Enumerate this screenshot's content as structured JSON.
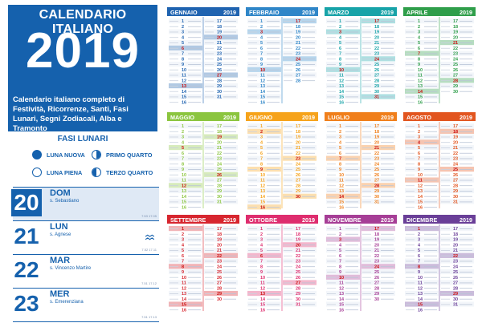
{
  "hero": {
    "title": "CALENDARIO ITALIANO",
    "year": "2019",
    "description": "Calendario italiano completo di Festività, Ricorrenze, Santi, Fasi Lunari, Segni Zodiacali, Alba e Tramonto",
    "bg_color": "#1561ad"
  },
  "phases": {
    "title": "FASI LUNARI",
    "items": [
      {
        "label": "LUNA NUOVA",
        "icon": "new-moon-icon"
      },
      {
        "label": "PRIMO QUARTO",
        "icon": "first-quarter-icon"
      },
      {
        "label": "LUNA PIENA",
        "icon": "full-moon-icon"
      },
      {
        "label": "TERZO QUARTO",
        "icon": "last-quarter-icon"
      }
    ]
  },
  "sample_days": [
    {
      "num": "20",
      "weekday": "DOM",
      "saint": "s. Sebastiano",
      "sun": "7.53 17.05"
    },
    {
      "num": "21",
      "weekday": "LUN",
      "saint": "s. Agnese",
      "sun": "7.52 17.11"
    },
    {
      "num": "22",
      "weekday": "MAR",
      "saint": "s. Vincenzo Martire",
      "sun": "7.51 17.12"
    },
    {
      "num": "23",
      "weekday": "MER",
      "saint": "s. Emerenziana",
      "sun": "7.51 17.13"
    }
  ],
  "months": [
    {
      "name": "GENNAIO",
      "year": "2019",
      "color": "#1f63b0",
      "days": 31,
      "first_weekday": 2
    },
    {
      "name": "FEBBRAIO",
      "year": "2019",
      "color": "#2f86c8",
      "days": 28,
      "first_weekday": 5
    },
    {
      "name": "MARZO",
      "year": "2019",
      "color": "#17a3a8",
      "days": 31,
      "first_weekday": 5
    },
    {
      "name": "APRILE",
      "year": "2019",
      "color": "#2f9e4a",
      "days": 30,
      "first_weekday": 1
    },
    {
      "name": "MAGGIO",
      "year": "2019",
      "color": "#8bc53f",
      "days": 31,
      "first_weekday": 3
    },
    {
      "name": "GIUGNO",
      "year": "2019",
      "color": "#f6a31b",
      "days": 30,
      "first_weekday": 6
    },
    {
      "name": "LUGLIO",
      "year": "2019",
      "color": "#f07f1b",
      "days": 31,
      "first_weekday": 1
    },
    {
      "name": "AGOSTO",
      "year": "2019",
      "color": "#e2551f",
      "days": 31,
      "first_weekday": 4
    },
    {
      "name": "SETTEMBRE",
      "year": "2019",
      "color": "#d7262f",
      "days": 30,
      "first_weekday": 0
    },
    {
      "name": "OTTOBRE",
      "year": "2019",
      "color": "#de2d6e",
      "days": 31,
      "first_weekday": 2
    },
    {
      "name": "NOVEMBRE",
      "year": "2019",
      "color": "#a63e96",
      "days": 30,
      "first_weekday": 5
    },
    {
      "name": "DICEMBRE",
      "year": "2019",
      "color": "#6a3f98",
      "days": 31,
      "first_weekday": 0
    }
  ]
}
